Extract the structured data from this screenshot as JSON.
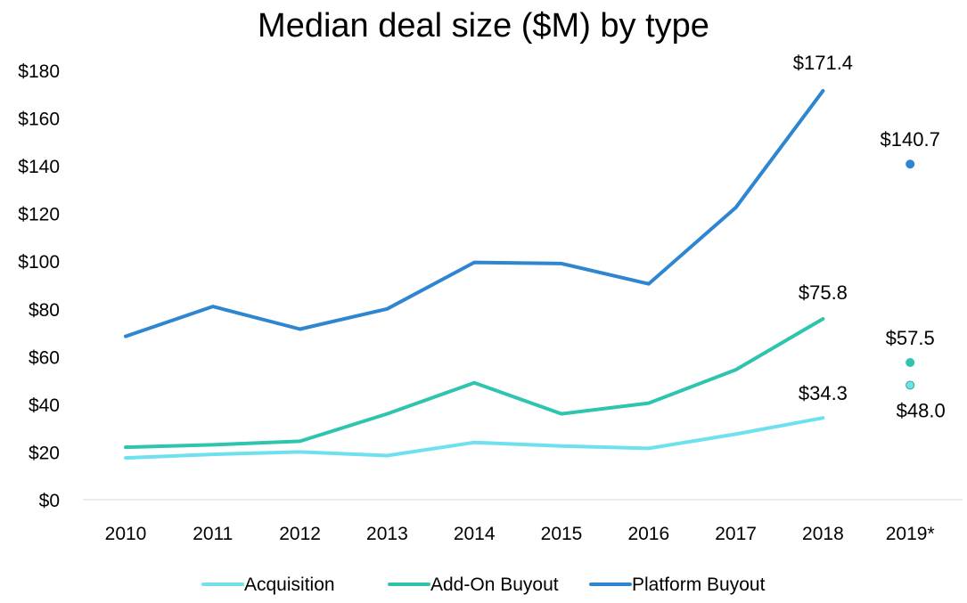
{
  "chart_data": {
    "type": "line",
    "title": "Median deal size ($M) by type",
    "xlabel": "",
    "ylabel": "",
    "categories": [
      "2010",
      "2011",
      "2012",
      "2013",
      "2014",
      "2015",
      "2016",
      "2017",
      "2018",
      "2019*"
    ],
    "ylim": [
      0,
      180
    ],
    "yticks": [
      0,
      20,
      40,
      60,
      80,
      100,
      120,
      140,
      160,
      180
    ],
    "ytick_labels": [
      "$0",
      "$20",
      "$40",
      "$60",
      "$80",
      "$100",
      "$120",
      "$140",
      "$160",
      "$180"
    ],
    "grid": false,
    "legend": "bottom",
    "series": [
      {
        "name": "Acquisition",
        "color": "#6FE0EE",
        "values": [
          17.5,
          19.0,
          20.0,
          18.5,
          24.0,
          22.5,
          21.5,
          27.5,
          34.3,
          48.0
        ],
        "last_point_separate": true,
        "labels": [
          null,
          null,
          null,
          null,
          null,
          null,
          null,
          null,
          "$34.3",
          "$48.0"
        ]
      },
      {
        "name": "Add-On Buyout",
        "color": "#2EC4AE",
        "values": [
          22.0,
          23.0,
          24.5,
          36.0,
          49.0,
          36.0,
          40.5,
          54.5,
          75.8,
          57.5
        ],
        "last_point_separate": true,
        "labels": [
          null,
          null,
          null,
          null,
          null,
          null,
          null,
          null,
          "$75.8",
          "$57.5"
        ]
      },
      {
        "name": "Platform Buyout",
        "color": "#2F86D0",
        "values": [
          68.5,
          81.0,
          71.5,
          80.0,
          99.5,
          99.0,
          90.5,
          122.5,
          171.4,
          140.7
        ],
        "last_point_separate": true,
        "labels": [
          null,
          null,
          null,
          null,
          null,
          null,
          null,
          null,
          "$171.4",
          "$140.7"
        ]
      }
    ]
  }
}
